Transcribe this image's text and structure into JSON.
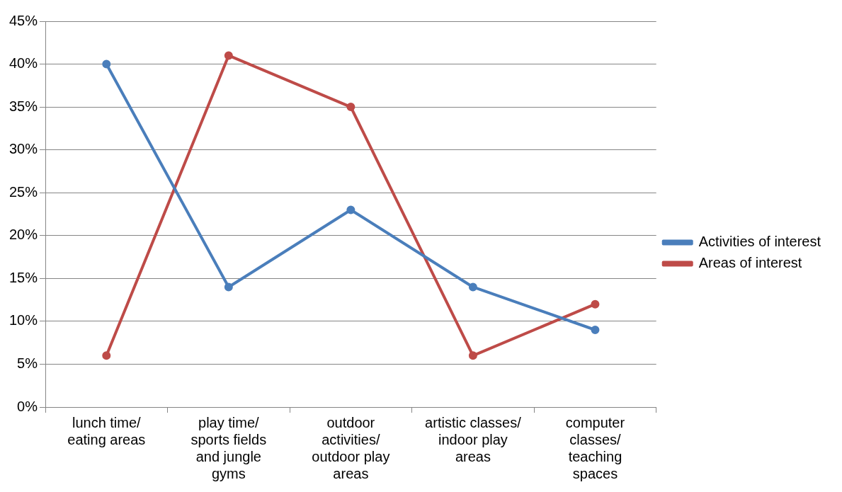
{
  "chart_data": {
    "type": "line",
    "categories": [
      "lunch time/ eating areas",
      "play time/ sports fields and jungle gyms",
      "outdoor activities/ outdoor play areas",
      "artistic classes/ indoor play areas",
      "computer classes/ teaching spaces"
    ],
    "series": [
      {
        "name": "Activities of interest",
        "color": "#4a7ebb",
        "values": [
          40,
          14,
          23,
          14,
          9
        ]
      },
      {
        "name": "Areas of interest",
        "color": "#be4b48",
        "values": [
          6,
          41,
          35,
          6,
          12
        ]
      }
    ],
    "ylim": [
      0,
      45
    ],
    "yticks": [
      {
        "value": 0,
        "label": "0%"
      },
      {
        "value": 5,
        "label": "5%"
      },
      {
        "value": 10,
        "label": "10%"
      },
      {
        "value": 15,
        "label": "15%"
      },
      {
        "value": 20,
        "label": "20%"
      },
      {
        "value": 25,
        "label": "25%"
      },
      {
        "value": 30,
        "label": "30%"
      },
      {
        "value": 35,
        "label": "35%"
      },
      {
        "value": 40,
        "label": "40%"
      },
      {
        "value": 45,
        "label": "45%"
      }
    ],
    "grid": "y",
    "legend": "right",
    "marker": "circle",
    "line_style": "solid"
  }
}
